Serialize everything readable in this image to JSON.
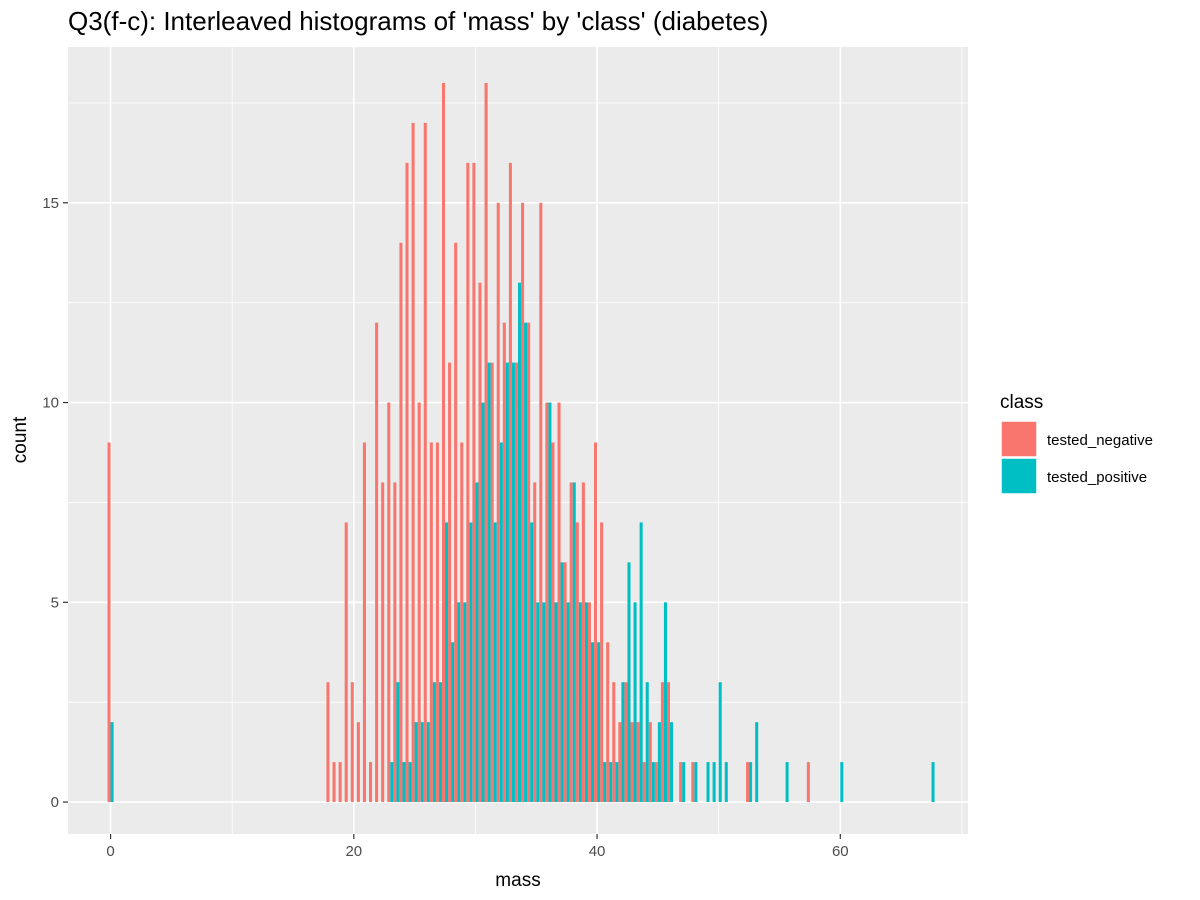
{
  "title": "Q3(f-c): Interleaved histograms of 'mass' by 'class' (diabetes)",
  "chart_data": {
    "type": "bar",
    "subtype": "histogram-dodged",
    "title": "Q3(f-c): Interleaved histograms of 'mass' by 'class' (diabetes)",
    "xlabel": "mass",
    "ylabel": "count",
    "xlim": [
      -3.5,
      70.5
    ],
    "ylim": [
      -0.8,
      18.9
    ],
    "x_ticks": [
      0,
      20,
      40,
      60
    ],
    "x_tick_labels": [
      "0",
      "20",
      "40",
      "60"
    ],
    "y_ticks": [
      0,
      5,
      10,
      15
    ],
    "y_tick_labels": [
      "0",
      "5",
      "10",
      "15"
    ],
    "grid": true,
    "legend_title": "class",
    "legend_position": "right",
    "bin_width": 0.5,
    "series": [
      {
        "name": "tested_negative",
        "color": "#F8766D",
        "points": [
          [
            0,
            9
          ],
          [
            18,
            3
          ],
          [
            18.5,
            1
          ],
          [
            19,
            1
          ],
          [
            19.5,
            7
          ],
          [
            20,
            3
          ],
          [
            20.5,
            2
          ],
          [
            21,
            9
          ],
          [
            21.5,
            1
          ],
          [
            22,
            12
          ],
          [
            22.5,
            8
          ],
          [
            23,
            10
          ],
          [
            23.5,
            8
          ],
          [
            24,
            14
          ],
          [
            24.5,
            16
          ],
          [
            25,
            17
          ],
          [
            25.5,
            10
          ],
          [
            26,
            17
          ],
          [
            26.5,
            9
          ],
          [
            27,
            9
          ],
          [
            27.5,
            18
          ],
          [
            28,
            11
          ],
          [
            28.5,
            14
          ],
          [
            29,
            9
          ],
          [
            29.5,
            16
          ],
          [
            30,
            16
          ],
          [
            30.5,
            13
          ],
          [
            31,
            18
          ],
          [
            31.5,
            11
          ],
          [
            32,
            15
          ],
          [
            32.5,
            12
          ],
          [
            33,
            16
          ],
          [
            33.5,
            11
          ],
          [
            34,
            15
          ],
          [
            34.5,
            12
          ],
          [
            35,
            8
          ],
          [
            35.5,
            15
          ],
          [
            36,
            10
          ],
          [
            36.5,
            9
          ],
          [
            37,
            10
          ],
          [
            37.5,
            6
          ],
          [
            38,
            8
          ],
          [
            38.5,
            7
          ],
          [
            39,
            8
          ],
          [
            39.5,
            5
          ],
          [
            40,
            9
          ],
          [
            40.5,
            7
          ],
          [
            41,
            4
          ],
          [
            41.5,
            3
          ],
          [
            42,
            2
          ],
          [
            42.5,
            3
          ],
          [
            43,
            2
          ],
          [
            43.5,
            2
          ],
          [
            44,
            1
          ],
          [
            44.5,
            2
          ],
          [
            45,
            1
          ],
          [
            45.5,
            3
          ],
          [
            46,
            3
          ],
          [
            47,
            1
          ],
          [
            48,
            1
          ],
          [
            52.5,
            1
          ],
          [
            57.5,
            1
          ]
        ]
      },
      {
        "name": "tested_positive",
        "color": "#00BFC4",
        "points": [
          [
            0,
            2
          ],
          [
            23,
            1
          ],
          [
            23.5,
            3
          ],
          [
            24,
            1
          ],
          [
            24.5,
            1
          ],
          [
            25,
            2
          ],
          [
            25.5,
            2
          ],
          [
            26,
            2
          ],
          [
            26.5,
            3
          ],
          [
            27,
            3
          ],
          [
            27.5,
            7
          ],
          [
            28,
            4
          ],
          [
            28.5,
            5
          ],
          [
            29,
            5
          ],
          [
            29.5,
            7
          ],
          [
            30,
            8
          ],
          [
            30.5,
            10
          ],
          [
            31,
            11
          ],
          [
            31.5,
            7
          ],
          [
            32,
            9
          ],
          [
            32.5,
            11
          ],
          [
            33,
            11
          ],
          [
            33.5,
            13
          ],
          [
            34,
            12
          ],
          [
            34.5,
            7
          ],
          [
            35,
            5
          ],
          [
            35.5,
            5
          ],
          [
            36,
            10
          ],
          [
            36.5,
            5
          ],
          [
            37,
            6
          ],
          [
            37.5,
            5
          ],
          [
            38,
            8
          ],
          [
            38.5,
            5
          ],
          [
            39,
            5
          ],
          [
            39.5,
            4
          ],
          [
            40,
            4
          ],
          [
            40.5,
            1
          ],
          [
            41,
            1
          ],
          [
            41.5,
            1
          ],
          [
            42,
            3
          ],
          [
            42.5,
            6
          ],
          [
            43,
            5
          ],
          [
            43.5,
            7
          ],
          [
            44,
            3
          ],
          [
            44.5,
            1
          ],
          [
            45,
            2
          ],
          [
            45.5,
            5
          ],
          [
            46,
            2
          ],
          [
            47,
            1
          ],
          [
            48,
            1
          ],
          [
            49,
            1
          ],
          [
            49.5,
            1
          ],
          [
            50,
            3
          ],
          [
            50.5,
            1
          ],
          [
            52.5,
            1
          ],
          [
            53,
            2
          ],
          [
            55.5,
            1
          ],
          [
            60,
            1
          ],
          [
            67.5,
            1
          ]
        ]
      }
    ]
  }
}
